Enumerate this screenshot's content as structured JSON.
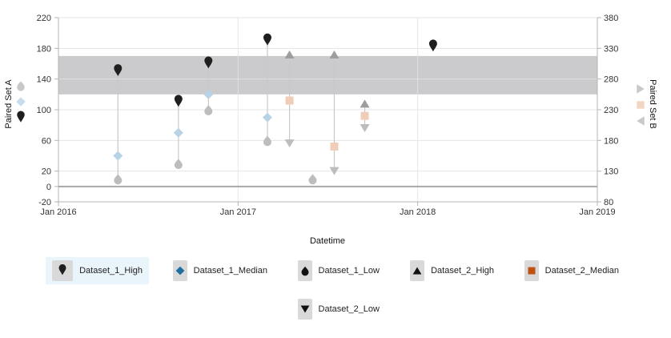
{
  "chart_data": {
    "type": "scatter",
    "xlabel": "Datetime",
    "ylabel_left": "Paired Set A",
    "ylabel_right": "Paired Set B",
    "x_ticks": [
      "Jan 2016",
      "Jan 2017",
      "Jan 2018",
      "Jan 2019"
    ],
    "xlim": [
      "2016-01-01",
      "2019-01-01"
    ],
    "y_left_ticks": [
      -20,
      0,
      20,
      60,
      100,
      140,
      180,
      220
    ],
    "y_left_lim": [
      -20,
      220
    ],
    "y_right_ticks": [
      80,
      130,
      180,
      230,
      280,
      330,
      380
    ],
    "y_right_lim": [
      80,
      380
    ],
    "band_left": [
      120,
      170
    ],
    "series": [
      {
        "name": "Dataset_1_High",
        "axis": "left",
        "marker": "pin",
        "color": "#1f1f1f",
        "points": [
          [
            "2016-05-01",
            150
          ],
          [
            "2016-09-01",
            110
          ],
          [
            "2016-11-01",
            160
          ],
          [
            "2017-03-01",
            190
          ],
          [
            "2018-02-01",
            182
          ]
        ]
      },
      {
        "name": "Dataset_1_Median",
        "axis": "left",
        "marker": "diamond",
        "color": "#b9d3e6",
        "points": [
          [
            "2016-05-01",
            40
          ],
          [
            "2016-09-01",
            70
          ],
          [
            "2016-11-01",
            120
          ],
          [
            "2017-03-01",
            90
          ]
        ]
      },
      {
        "name": "Dataset_1_Low",
        "axis": "left",
        "marker": "drop",
        "color": "#bdbdbd",
        "points": [
          [
            "2016-05-01",
            10
          ],
          [
            "2016-09-01",
            30
          ],
          [
            "2016-11-01",
            100
          ],
          [
            "2017-03-01",
            60
          ],
          [
            "2017-06-01",
            10
          ]
        ]
      },
      {
        "name": "Dataset_2_High",
        "axis": "right",
        "marker": "triangle-up",
        "color": "#9e9e9e",
        "points": [
          [
            "2017-04-15",
            320
          ],
          [
            "2017-07-15",
            320
          ],
          [
            "2017-09-15",
            240
          ]
        ]
      },
      {
        "name": "Dataset_2_Median",
        "axis": "right",
        "marker": "square",
        "color": "#f0cdb8",
        "points": [
          [
            "2017-04-15",
            245
          ],
          [
            "2017-07-15",
            170
          ],
          [
            "2017-09-15",
            220
          ]
        ]
      },
      {
        "name": "Dataset_2_Low",
        "axis": "right",
        "marker": "triangle-down",
        "color": "#bdbdbd",
        "points": [
          [
            "2017-04-15",
            175
          ],
          [
            "2017-07-15",
            130
          ],
          [
            "2017-09-15",
            200
          ]
        ]
      }
    ],
    "ranges": [
      {
        "axis": "left",
        "x": "2016-05-01",
        "from": 10,
        "to": 150
      },
      {
        "axis": "left",
        "x": "2016-09-01",
        "from": 30,
        "to": 110
      },
      {
        "axis": "left",
        "x": "2016-11-01",
        "from": 100,
        "to": 160
      },
      {
        "axis": "left",
        "x": "2017-03-01",
        "from": 60,
        "to": 190
      },
      {
        "axis": "right",
        "x": "2017-04-15",
        "from": 175,
        "to": 320
      },
      {
        "axis": "right",
        "x": "2017-07-15",
        "from": 130,
        "to": 320
      },
      {
        "axis": "right",
        "x": "2017-09-15",
        "from": 200,
        "to": 240
      }
    ],
    "axis_markers": {
      "left": [
        {
          "marker": "drop",
          "color": "#c8c8c8"
        },
        {
          "marker": "diamond",
          "color": "#c7dcec"
        },
        {
          "marker": "pin",
          "color": "#1f1f1f"
        }
      ],
      "right": [
        {
          "marker": "triangle-right",
          "color": "#c8c8c8"
        },
        {
          "marker": "square",
          "color": "#f2d5c4"
        },
        {
          "marker": "triangle-left",
          "color": "#c8c8c8"
        }
      ]
    }
  },
  "legend": {
    "items": [
      {
        "label": "Dataset_1_High",
        "marker": "pin",
        "color": "#1f1f1f",
        "active": true
      },
      {
        "label": "Dataset_1_Median",
        "marker": "diamond",
        "color": "#1f6f9f",
        "active": false
      },
      {
        "label": "Dataset_1_Low",
        "marker": "drop",
        "color": "#111111",
        "active": false
      },
      {
        "label": "Dataset_2_High",
        "marker": "triangle-up",
        "color": "#111111",
        "active": false
      },
      {
        "label": "Dataset_2_Median",
        "marker": "square",
        "color": "#c0500f",
        "active": false
      },
      {
        "label": "Dataset_2_Low",
        "marker": "triangle-down",
        "color": "#111111",
        "active": false
      }
    ]
  }
}
